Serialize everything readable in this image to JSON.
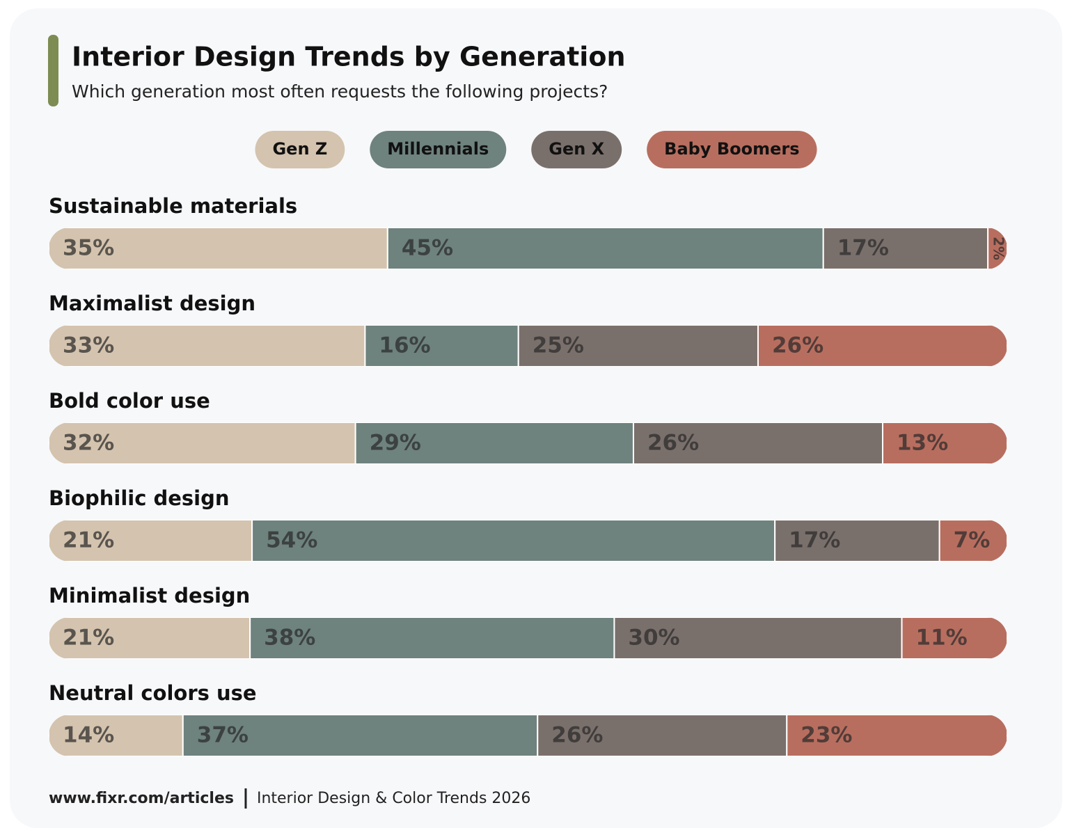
{
  "chart_data": {
    "type": "stacked-bar",
    "title": "Interior Design Trends by Generation",
    "subtitle": "Which generation most often requests the following projects?",
    "categories": [
      "Sustainable materials",
      "Maximalist design",
      "Bold color use",
      "Biophilic design",
      "Minimalist design",
      "Neutral colors use"
    ],
    "series": [
      {
        "name": "Gen Z",
        "color": "#d4c3ae",
        "values": [
          35,
          33,
          32,
          21,
          21,
          14
        ],
        "value_labels": [
          "35%",
          "33%",
          "32%",
          "21%",
          "21%",
          "14%"
        ]
      },
      {
        "name": "Millennials",
        "color": "#6e827e",
        "values": [
          45,
          16,
          29,
          54,
          38,
          37
        ],
        "value_labels": [
          "45%",
          "16%",
          "29%",
          "54%",
          "38%",
          "37%"
        ]
      },
      {
        "name": "Gen X",
        "color": "#7a706b",
        "values": [
          17,
          25,
          26,
          17,
          30,
          26
        ],
        "value_labels": [
          "17%",
          "25%",
          "26%",
          "17%",
          "30%",
          "26%"
        ]
      },
      {
        "name": "Baby Boomers",
        "color": "#b86e5f",
        "values": [
          2,
          26,
          13,
          7,
          11,
          23
        ],
        "value_labels": [
          "2%",
          "26%",
          "13%",
          "7%",
          "11%",
          "23%"
        ]
      }
    ],
    "source": {
      "url": "www.fixr.com/articles",
      "title": "Interior Design & Color Trends 2026"
    }
  }
}
